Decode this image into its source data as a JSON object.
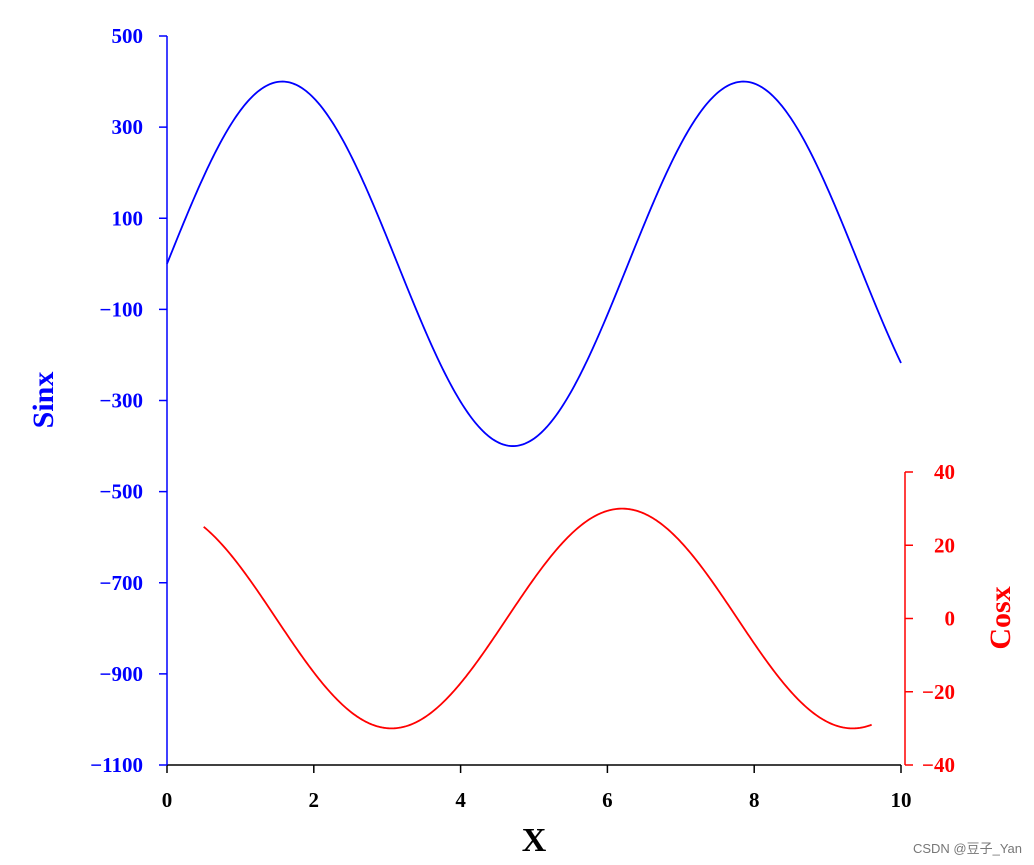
{
  "colors": {
    "sin": "#0000ff",
    "cos": "#ff0000",
    "axis": "#000000"
  },
  "chart_data": {
    "type": "line",
    "xlabel": "X",
    "xlim": [
      0,
      10
    ],
    "x_ticks": [
      0,
      2,
      4,
      6,
      8,
      10
    ],
    "x_tick_labels": [
      "0",
      "2",
      "4",
      "6",
      "8",
      "10"
    ],
    "grid": false,
    "legend": "none",
    "series": [
      {
        "axis": "left",
        "label": "Sinx",
        "color": "#0000ff",
        "function": "400*sin(x)",
        "amplitude": 400,
        "x_range": [
          0,
          10
        ],
        "ylim": [
          -1100,
          500
        ],
        "y_ticks": [
          500,
          300,
          100,
          -100,
          -300,
          -500,
          -700,
          -900,
          -1100
        ],
        "y_tick_labels": [
          "500",
          "300",
          "100",
          "−100",
          "−300",
          "−500",
          "−700",
          "−900",
          "−1100"
        ]
      },
      {
        "axis": "right",
        "label": "Cosx",
        "color": "#ff0000",
        "function": "30*cos(x-6.2)",
        "amplitude": 30,
        "phase": 6.2,
        "x_range": [
          0.5,
          9.6
        ],
        "ylim": [
          -40,
          40
        ],
        "y_ticks": [
          40,
          20,
          0,
          -20,
          -40
        ],
        "y_tick_labels": [
          "40",
          "20",
          "0",
          "−20",
          "−40"
        ]
      }
    ]
  },
  "watermark": "CSDN @豆子_Yan"
}
